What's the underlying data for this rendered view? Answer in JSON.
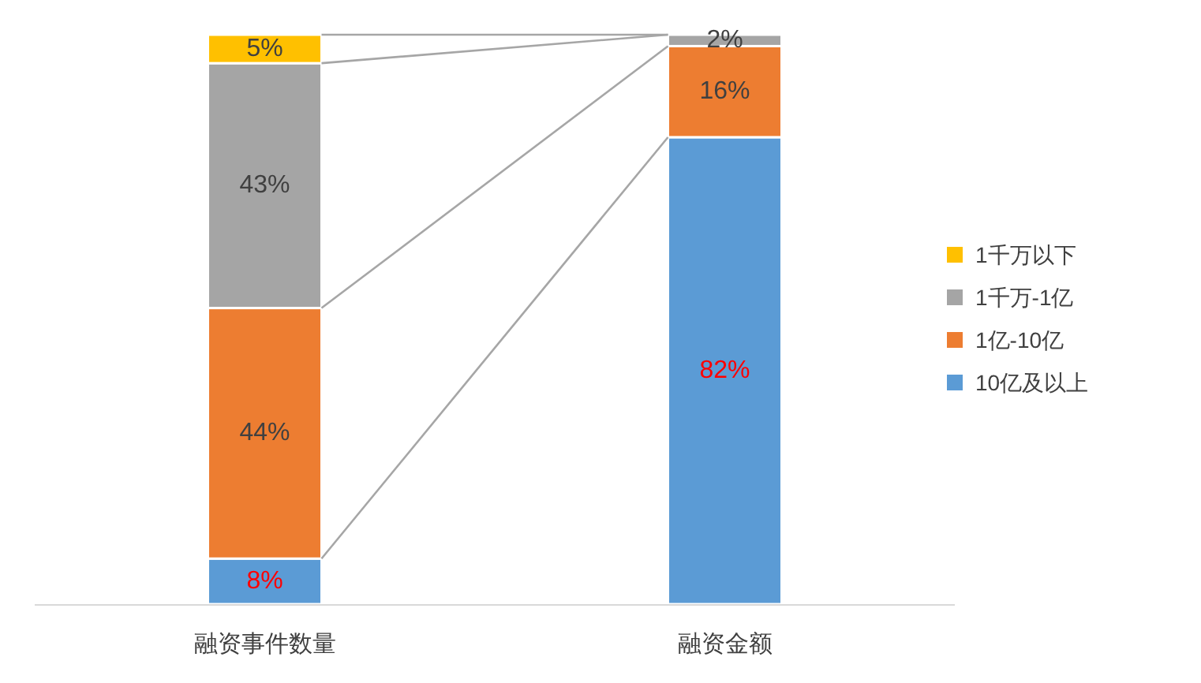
{
  "chart_data": {
    "type": "bar",
    "stacked": true,
    "categories": [
      "融资事件数量",
      "融资金额"
    ],
    "series": [
      {
        "name": "10亿及以上",
        "color": "#5b9bd5",
        "values": [
          8,
          82
        ],
        "value_labels": [
          "8%",
          "82%"
        ]
      },
      {
        "name": "1亿-10亿",
        "color": "#ed7d31",
        "values": [
          44,
          16
        ],
        "value_labels": [
          "44%",
          "16%"
        ]
      },
      {
        "name": "1千万-1亿",
        "color": "#a5a5a5",
        "values": [
          43,
          2
        ],
        "value_labels": [
          "43%",
          "2%"
        ]
      },
      {
        "name": "1千万以下",
        "color": "#ffc000",
        "values": [
          5,
          0
        ],
        "value_labels": [
          "5%",
          null
        ]
      }
    ],
    "legend": "right"
  }
}
